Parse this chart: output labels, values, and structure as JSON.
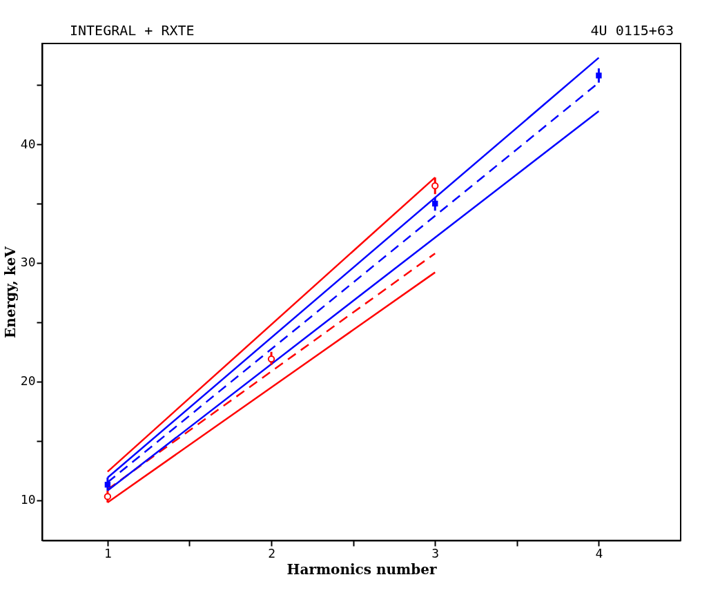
{
  "chart_data": {
    "type": "scatter",
    "title": "INTEGRAL + RXTE",
    "annotations": [
      "4U 0115+63"
    ],
    "xlabel": "Harmonics number",
    "ylabel": "Energy, keV",
    "xlim": [
      0.6,
      4.5
    ],
    "xticks": [
      1,
      {
        "value": 1.5,
        "label": null
      },
      2,
      {
        "value": 2.5,
        "label": null
      },
      3,
      {
        "value": 3.5,
        "label": null
      },
      4
    ],
    "ylim": [
      6.6,
      48.5
    ],
    "yticks": [
      10,
      {
        "value": 15,
        "label": null
      },
      20,
      {
        "value": 25,
        "label": null
      },
      30,
      {
        "value": 35,
        "label": null
      },
      40,
      {
        "value": 45,
        "label": null
      }
    ],
    "grid": false,
    "series": [
      {
        "type": "line",
        "color": "#ff0000",
        "line_style": "solid",
        "marker": "none",
        "x": [
          1,
          3
        ],
        "values": [
          12.4,
          37.2
        ]
      },
      {
        "type": "line",
        "color": "#ff0000",
        "line_style": "dashed",
        "marker": "none",
        "x": [
          1,
          3
        ],
        "values": [
          10.9,
          30.8
        ]
      },
      {
        "type": "line",
        "color": "#ff0000",
        "line_style": "solid",
        "marker": "none",
        "x": [
          1,
          3
        ],
        "values": [
          9.8,
          29.2
        ]
      },
      {
        "type": "line",
        "color": "#0000ff",
        "line_style": "solid",
        "marker": "none",
        "x": [
          1,
          4
        ],
        "values": [
          11.9,
          47.3
        ]
      },
      {
        "type": "line",
        "color": "#0000ff",
        "line_style": "dashed",
        "marker": "none",
        "x": [
          1,
          4
        ],
        "values": [
          11.5,
          45.2
        ]
      },
      {
        "type": "line",
        "color": "#0000ff",
        "line_style": "solid",
        "marker": "none",
        "x": [
          1,
          4
        ],
        "values": [
          10.8,
          42.8
        ]
      },
      {
        "color": "#ff0000",
        "marker": "circle",
        "x": [
          1,
          2,
          3
        ],
        "values": [
          10.3,
          21.9,
          36.5
        ],
        "errors": [
          [
            9.8,
            10.8
          ],
          [
            21.4,
            22.5
          ],
          [
            35.8,
            37.2
          ]
        ]
      },
      {
        "color": "#0000ff",
        "marker": "square",
        "x": [
          1,
          3,
          4
        ],
        "values": [
          11.3,
          35.0,
          45.8
        ],
        "errors": [
          [
            10.8,
            11.9
          ],
          [
            34.4,
            35.5
          ],
          [
            45.2,
            46.4
          ]
        ]
      }
    ]
  }
}
